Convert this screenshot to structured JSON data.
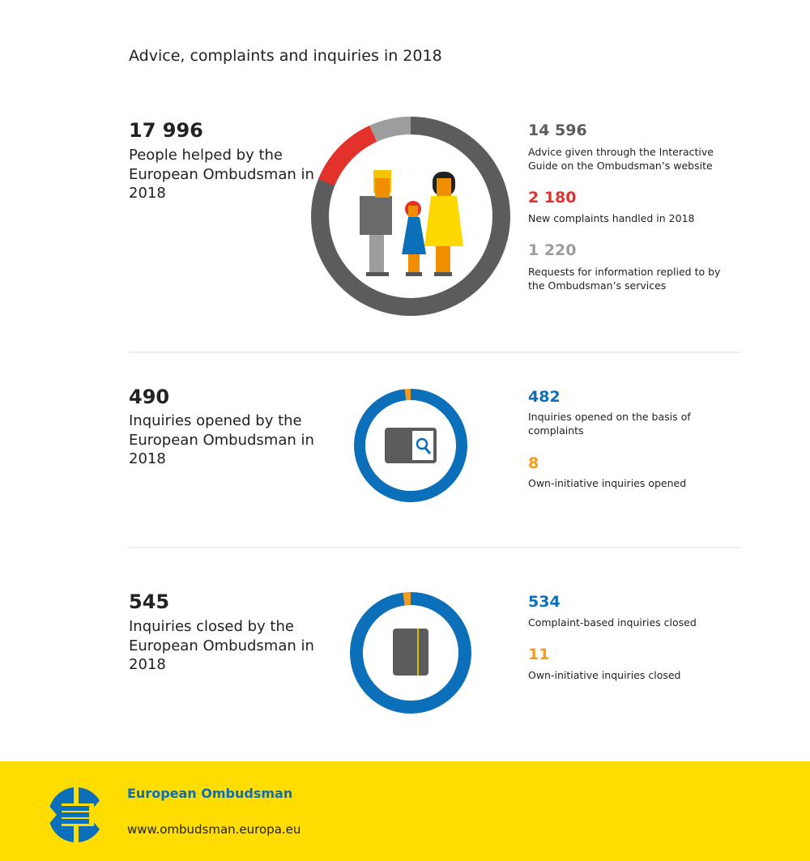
{
  "title": "Advice, complaints and inquiries in 2018",
  "colors": {
    "dark": "#5d5c5c",
    "red": "#e3312c",
    "light": "#9d9d9d",
    "blue": "#0b70b9",
    "orange": "#f39c1a",
    "yellow": "#ffdd00"
  },
  "sections": [
    {
      "total": "17 996",
      "desc": "People helped by the European Ombudsman in 2018",
      "icon": "family-icon",
      "items": [
        {
          "value": "14 596",
          "label": "Advice given through the Interactive Guide on the Ombudsman’s website",
          "n": 14596,
          "color": "#5d5c5c"
        },
        {
          "value": "2 180",
          "label": "New complaints handled in 2018",
          "n": 2180,
          "color": "#e3312c"
        },
        {
          "value": "1 220",
          "label": "Requests for information replied to by the Ombudsman’s services",
          "n": 1220,
          "color": "#9d9d9d"
        }
      ]
    },
    {
      "total": "490",
      "desc": "Inquiries opened by the European Ombudsman in 2018",
      "icon": "open-folder-search-icon",
      "items": [
        {
          "value": "482",
          "label": "Inquiries opened on the basis of complaints",
          "n": 482,
          "color": "#0b70b9"
        },
        {
          "value": "8",
          "label": "Own-initiative inquiries opened",
          "n": 8,
          "color": "#f39c1a"
        }
      ]
    },
    {
      "total": "545",
      "desc": "Inquiries closed by the European Ombudsman in 2018",
      "icon": "closed-folder-icon",
      "items": [
        {
          "value": "534",
          "label": "Complaint-based inquiries closed",
          "n": 534,
          "color": "#0b70b9"
        },
        {
          "value": "11",
          "label": "Own-initiative inquiries closed",
          "n": 11,
          "color": "#f39c1a"
        }
      ]
    }
  ],
  "footer": {
    "name": "European Ombudsman",
    "url": "www.ombudsman.europa.eu"
  }
}
